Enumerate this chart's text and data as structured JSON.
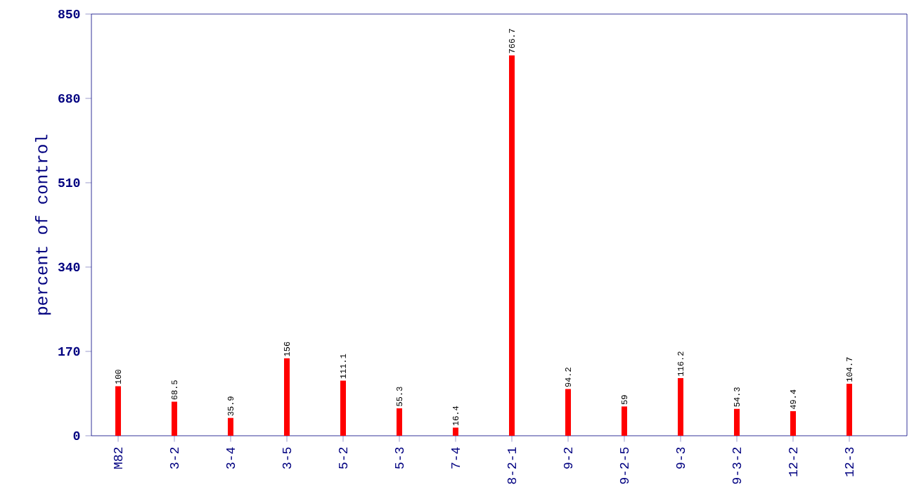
{
  "chart_data": {
    "type": "bar",
    "ylabel": "percent of control",
    "categories": [
      "M82",
      "3-2",
      "3-4",
      "3-5",
      "5-2",
      "5-3",
      "7-4",
      "8-2-1",
      "9-2",
      "9-2-5",
      "9-3",
      "9-3-2",
      "12-2",
      "12-3"
    ],
    "values": [
      100,
      68.5,
      35.9,
      156,
      111.1,
      55.3,
      16.4,
      766.7,
      94.2,
      59,
      116.2,
      54.3,
      49.4,
      104.7
    ],
    "color": "#ff0000",
    "ylim": [
      0,
      850
    ],
    "yticks": [
      0,
      170,
      340,
      510,
      680,
      850
    ],
    "data_labels": true
  }
}
